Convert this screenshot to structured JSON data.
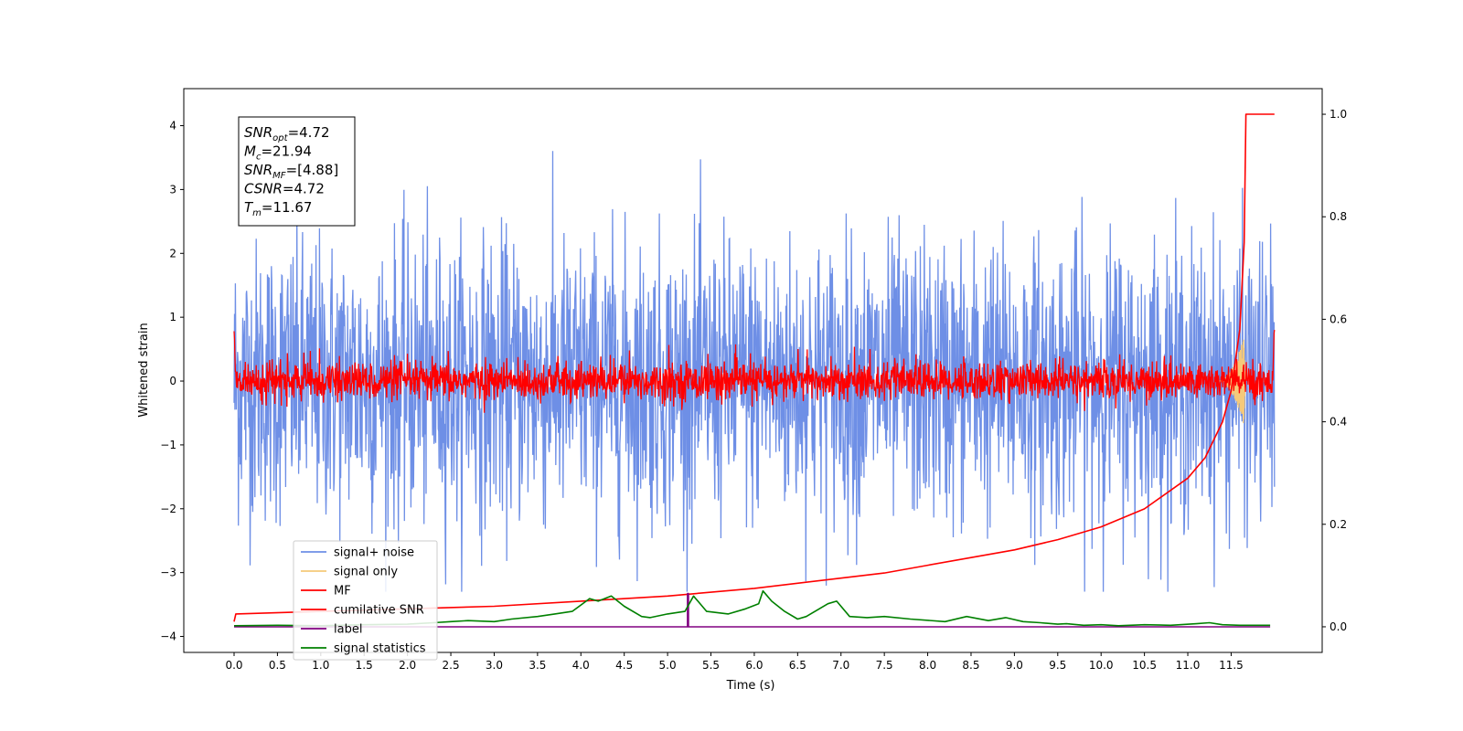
{
  "chart_data": {
    "type": "line",
    "xlabel": "Time (s)",
    "ylabel": "Whitened strain",
    "xlim": [
      -0.58,
      12.55
    ],
    "ylim": [
      -4.25,
      4.58
    ],
    "y2lim": [
      -0.05,
      1.05
    ],
    "xticks": [
      "0.0",
      "0.5",
      "1.0",
      "1.5",
      "2.0",
      "2.5",
      "3.0",
      "3.5",
      "4.0",
      "4.5",
      "5.0",
      "5.5",
      "6.0",
      "6.5",
      "7.0",
      "7.5",
      "8.0",
      "8.5",
      "9.0",
      "9.5",
      "10.0",
      "10.5",
      "11.0",
      "11.5"
    ],
    "yticks": [
      "4",
      "3",
      "2",
      "1",
      "0",
      "−1",
      "−2",
      "−3",
      "−4"
    ],
    "y2ticks": [
      "1.0",
      "0.8",
      "0.6",
      "0.4",
      "0.2",
      "0.0"
    ],
    "legend_placement": "lower-left",
    "grid": false,
    "series": [
      {
        "name": "signal+ noise",
        "axis": "left",
        "color": "#6e8fe6",
        "noise_amplitude": 1.1,
        "x_range": [
          0,
          12
        ]
      },
      {
        "name": "signal only",
        "axis": "left",
        "color": "#f5c97a",
        "chirp_end": 11.67,
        "peak_amplitude": 0.8
      },
      {
        "name": "MF",
        "axis": "left",
        "color": "#ff0000",
        "noise_amplitude": 0.2,
        "x_range": [
          0,
          12
        ]
      },
      {
        "name": "cumilative SNR",
        "axis": "right",
        "color": "#ff0000",
        "x": [
          0,
          0.02,
          1,
          2,
          3,
          4,
          5,
          6,
          7,
          7.5,
          8,
          8.5,
          9,
          9.5,
          10,
          10.5,
          11,
          11.2,
          11.4,
          11.5,
          11.6,
          11.65,
          11.67,
          12.0
        ],
        "y": [
          0.01,
          0.025,
          0.03,
          0.035,
          0.04,
          0.05,
          0.06,
          0.075,
          0.095,
          0.105,
          0.12,
          0.135,
          0.15,
          0.17,
          0.195,
          0.23,
          0.29,
          0.33,
          0.4,
          0.46,
          0.58,
          0.75,
          1.0,
          1.0
        ]
      },
      {
        "name": "label",
        "axis": "right",
        "color": "#800080",
        "x": [
          0,
          5.23,
          5.23,
          5.24,
          5.24,
          11.95
        ],
        "y": [
          0,
          0,
          0.065,
          0.065,
          0,
          0
        ]
      },
      {
        "name": "signal statistics",
        "axis": "right",
        "color": "#008000",
        "x": [
          0,
          0.5,
          1.0,
          1.5,
          2.0,
          2.3,
          2.5,
          2.7,
          3.0,
          3.2,
          3.5,
          3.7,
          3.9,
          4.1,
          4.2,
          4.35,
          4.5,
          4.7,
          4.8,
          5.0,
          5.2,
          5.3,
          5.45,
          5.7,
          5.9,
          6.05,
          6.1,
          6.2,
          6.35,
          6.5,
          6.6,
          6.85,
          6.95,
          7.1,
          7.3,
          7.5,
          7.8,
          8.2,
          8.45,
          8.7,
          8.9,
          9.1,
          9.3,
          9.5,
          9.6,
          9.8,
          10.0,
          10.2,
          10.5,
          10.8,
          11.1,
          11.25,
          11.4,
          11.6,
          11.95
        ],
        "y": [
          0.002,
          0.003,
          0.002,
          0.004,
          0.005,
          0.008,
          0.01,
          0.012,
          0.01,
          0.015,
          0.02,
          0.025,
          0.03,
          0.055,
          0.05,
          0.06,
          0.04,
          0.02,
          0.018,
          0.025,
          0.03,
          0.06,
          0.03,
          0.025,
          0.035,
          0.045,
          0.07,
          0.05,
          0.03,
          0.015,
          0.02,
          0.045,
          0.05,
          0.02,
          0.018,
          0.02,
          0.015,
          0.01,
          0.02,
          0.012,
          0.018,
          0.01,
          0.008,
          0.005,
          0.006,
          0.003,
          0.004,
          0.002,
          0.004,
          0.003,
          0.006,
          0.008,
          0.004,
          0.003,
          0.003
        ]
      }
    ],
    "annotation": [
      {
        "label": "SNR",
        "sub": "opt",
        "value": "=4.72"
      },
      {
        "label": "M",
        "sub": "c",
        "value": "=21.94"
      },
      {
        "label": "SNR",
        "sub": "MF",
        "value": "=[4.88]"
      },
      {
        "label": "CSNR",
        "sub": "",
        "value": "=4.72"
      },
      {
        "label": "T",
        "sub": "m",
        "value": "=11.67"
      }
    ]
  }
}
